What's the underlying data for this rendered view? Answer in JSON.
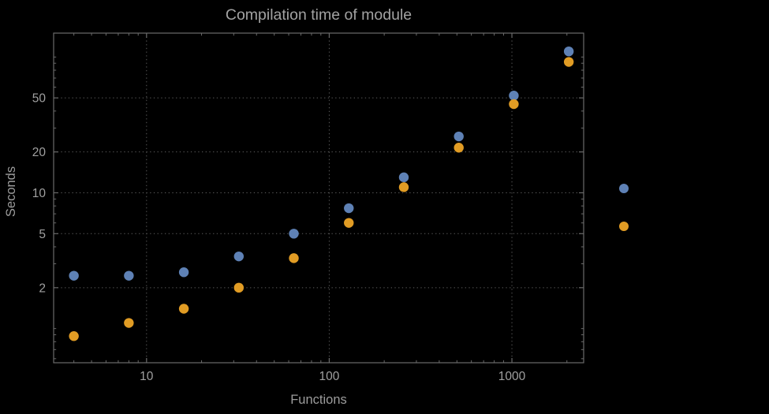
{
  "page": {
    "background": "#000000"
  },
  "chart_data": {
    "type": "scatter",
    "title": "Compilation time of module",
    "xlabel": "Functions",
    "ylabel": "Seconds",
    "xscale": "log",
    "yscale": "log",
    "xlim": [
      3.1,
      2470
    ],
    "ylim": [
      0.56,
      150
    ],
    "x_ticks": [
      10,
      100,
      1000
    ],
    "x_tick_labels": [
      "10",
      "100",
      "1000"
    ],
    "y_ticks": [
      2,
      5,
      10,
      20,
      50
    ],
    "y_tick_labels": [
      "2",
      "5",
      "10",
      "20",
      "50"
    ],
    "grid": "dotted lines at major ticks only",
    "legend": {
      "position": "right-of-frame",
      "labels_visible": false
    },
    "series": [
      {
        "name": "series-1-blue",
        "color": "#5e81b5",
        "x": [
          4,
          8,
          16,
          32,
          64,
          128,
          256,
          512,
          1024,
          2048
        ],
        "y": [
          2.45,
          2.45,
          2.6,
          3.4,
          5.0,
          7.7,
          13,
          26,
          52,
          110
        ]
      },
      {
        "name": "series-2-orange",
        "color": "#e19c24",
        "x": [
          4,
          8,
          16,
          32,
          64,
          128,
          256,
          512,
          1024,
          2048
        ],
        "y": [
          0.88,
          1.1,
          1.4,
          2.0,
          3.3,
          6.0,
          11,
          21.5,
          45,
          92
        ]
      }
    ],
    "colors": {
      "frame": "#6a6a6a",
      "grid": "#5e5e5e",
      "tick_label": "#a0a0a0",
      "title": "#a2a2a2",
      "axis_label": "#9c9c9c"
    }
  }
}
